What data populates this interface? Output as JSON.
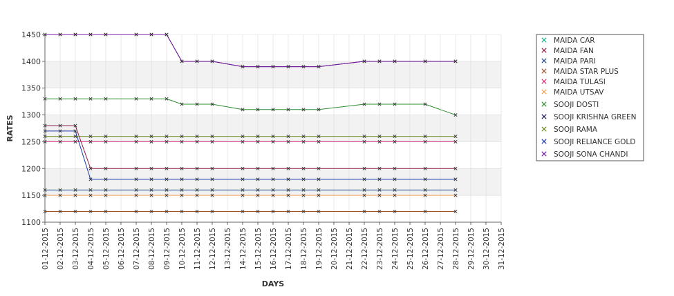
{
  "chart_data": {
    "type": "line",
    "xlabel": "DAYS",
    "ylabel": "RATES",
    "ylim": [
      1100,
      1450
    ],
    "yticks": [
      1100,
      1150,
      1200,
      1250,
      1300,
      1350,
      1400,
      1450
    ],
    "categories": [
      "01-12-2015",
      "02-12-2015",
      "03-12-2015",
      "04-12-2015",
      "05-12-2015",
      "06-12-2015",
      "07-12-2015",
      "08-12-2015",
      "09-12-2015",
      "10-12-2015",
      "11-12-2015",
      "12-12-2015",
      "13-12-2015",
      "14-12-2015",
      "15-12-2015",
      "16-12-2015",
      "17-12-2015",
      "18-12-2015",
      "19-12-2015",
      "20-12-2015",
      "21-12-2015",
      "22-12-2015",
      "23-12-2015",
      "24-12-2015",
      "25-12-2015",
      "26-12-2015",
      "27-12-2015",
      "28-12-2015",
      "29-12-2015",
      "30-12-2015",
      "31-12-2015"
    ],
    "grid": true,
    "legend_position": "right",
    "colors": {
      "background": "#ffffff",
      "band": "#f2f2f2",
      "grid": "#d9d9d9",
      "axis": "#666666"
    },
    "series": [
      {
        "name": "MAIDA CAR",
        "color": "#1aaf8e",
        "values": [
          null,
          null,
          null,
          null,
          null,
          null,
          null,
          null,
          null,
          null,
          null,
          null,
          null,
          null,
          null,
          null,
          null,
          null,
          null,
          null,
          null,
          null,
          null,
          null,
          null,
          null,
          null,
          null,
          null,
          null,
          null
        ]
      },
      {
        "name": "MAIDA FAN",
        "color": "#8b1a4a",
        "values": [
          1280,
          1280,
          1280,
          1200,
          1200,
          null,
          1200,
          1200,
          1200,
          1200,
          1200,
          1200,
          null,
          1200,
          1200,
          1200,
          1200,
          1200,
          1200,
          null,
          null,
          1200,
          1200,
          1200,
          null,
          1200,
          null,
          1200,
          null,
          null,
          null
        ]
      },
      {
        "name": "MAIDA PARI",
        "color": "#1a4a8b",
        "values": [
          1160,
          1160,
          1160,
          1160,
          1160,
          null,
          1160,
          1160,
          1160,
          1160,
          1160,
          1160,
          null,
          1160,
          1160,
          1160,
          1160,
          1160,
          1160,
          null,
          null,
          1160,
          1160,
          1160,
          null,
          1160,
          null,
          1160,
          null,
          null,
          null
        ]
      },
      {
        "name": "MAIDA STAR PLUS",
        "color": "#a0522d",
        "values": [
          1120,
          1120,
          1120,
          1120,
          1120,
          null,
          1120,
          1120,
          1120,
          1120,
          1120,
          1120,
          null,
          1120,
          1120,
          1120,
          1120,
          1120,
          1120,
          null,
          null,
          1120,
          1120,
          1120,
          null,
          1120,
          null,
          1120,
          null,
          null,
          null
        ]
      },
      {
        "name": "MAIDA TULASI",
        "color": "#d6297a",
        "values": [
          1250,
          1250,
          1250,
          1250,
          1250,
          null,
          1250,
          1250,
          1250,
          1250,
          1250,
          1250,
          null,
          1250,
          1250,
          1250,
          1250,
          1250,
          1250,
          null,
          null,
          1250,
          1250,
          1250,
          null,
          1250,
          null,
          1250,
          null,
          null,
          null
        ]
      },
      {
        "name": "MAIDA UTSAV",
        "color": "#f0a050",
        "values": [
          1150,
          1150,
          1150,
          1150,
          1150,
          null,
          1150,
          1150,
          1150,
          1150,
          1150,
          1150,
          null,
          1150,
          1150,
          1150,
          1150,
          1150,
          1150,
          null,
          null,
          1150,
          1150,
          1150,
          null,
          1150,
          null,
          1150,
          null,
          null,
          null
        ]
      },
      {
        "name": "SOOJI DOSTI",
        "color": "#2e8b2e",
        "values": [
          1330,
          1330,
          1330,
          1330,
          1330,
          null,
          1330,
          1330,
          1330,
          1320,
          1320,
          1320,
          null,
          1310,
          1310,
          1310,
          1310,
          1310,
          1310,
          null,
          null,
          1320,
          1320,
          1320,
          null,
          1320,
          null,
          1300,
          null,
          null,
          null
        ]
      },
      {
        "name": "SOOJI KRISHNA GREEN",
        "color": "#1a1a5a",
        "values": [
          1450,
          1450,
          1450,
          1450,
          1450,
          null,
          1450,
          1450,
          1450,
          1400,
          1400,
          1400,
          null,
          1390,
          1390,
          1390,
          1390,
          1390,
          1390,
          null,
          null,
          1400,
          1400,
          1400,
          null,
          1400,
          null,
          1400,
          null,
          null,
          null
        ]
      },
      {
        "name": "SOOJI RAMA",
        "color": "#6b8e23",
        "values": [
          1260,
          1260,
          1260,
          1260,
          1260,
          null,
          1260,
          1260,
          1260,
          1260,
          1260,
          1260,
          null,
          1260,
          1260,
          1260,
          1260,
          1260,
          1260,
          null,
          null,
          1260,
          1260,
          1260,
          null,
          1260,
          null,
          1260,
          null,
          null,
          null
        ]
      },
      {
        "name": "SOOJI RELIANCE GOLD",
        "color": "#1a3aa8",
        "values": [
          1270,
          1270,
          1270,
          1180,
          1180,
          null,
          1180,
          1180,
          1180,
          1180,
          1180,
          1180,
          null,
          1180,
          1180,
          1180,
          1180,
          1180,
          1180,
          null,
          null,
          1180,
          1180,
          1180,
          null,
          1180,
          null,
          1180,
          null,
          null,
          null
        ]
      },
      {
        "name": "SOOJI SONA CHANDI",
        "color": "#7a1aa0",
        "values": [
          1450,
          1450,
          1450,
          1450,
          1450,
          null,
          1450,
          1450,
          1450,
          1400,
          1400,
          1400,
          null,
          1390,
          1390,
          1390,
          1390,
          1390,
          1390,
          null,
          null,
          1400,
          1400,
          1400,
          null,
          1400,
          null,
          1400,
          null,
          null,
          null
        ]
      }
    ]
  }
}
